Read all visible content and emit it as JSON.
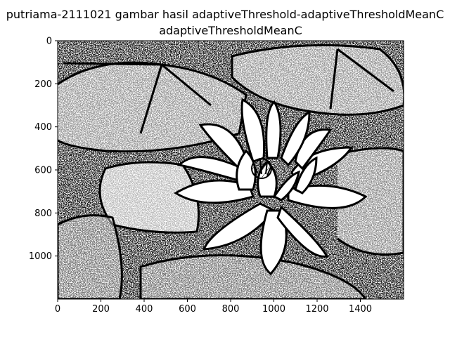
{
  "chart_data": {
    "type": "image",
    "suptitle": "putriama-2111021 gambar hasil adaptiveThreshold-adaptiveThresholdMeanC",
    "title": "adaptiveThresholdMeanC",
    "content": "binary edge image of a water lily flower among lily pads",
    "xlim": [
      0,
      1600
    ],
    "ylim": [
      1200,
      0
    ],
    "xticks": [
      0,
      200,
      400,
      600,
      800,
      1000,
      1200,
      1400
    ],
    "yticks": [
      0,
      200,
      400,
      600,
      800,
      1000
    ],
    "colors": {
      "ink": "#000000",
      "paper": "#ffffff"
    }
  }
}
